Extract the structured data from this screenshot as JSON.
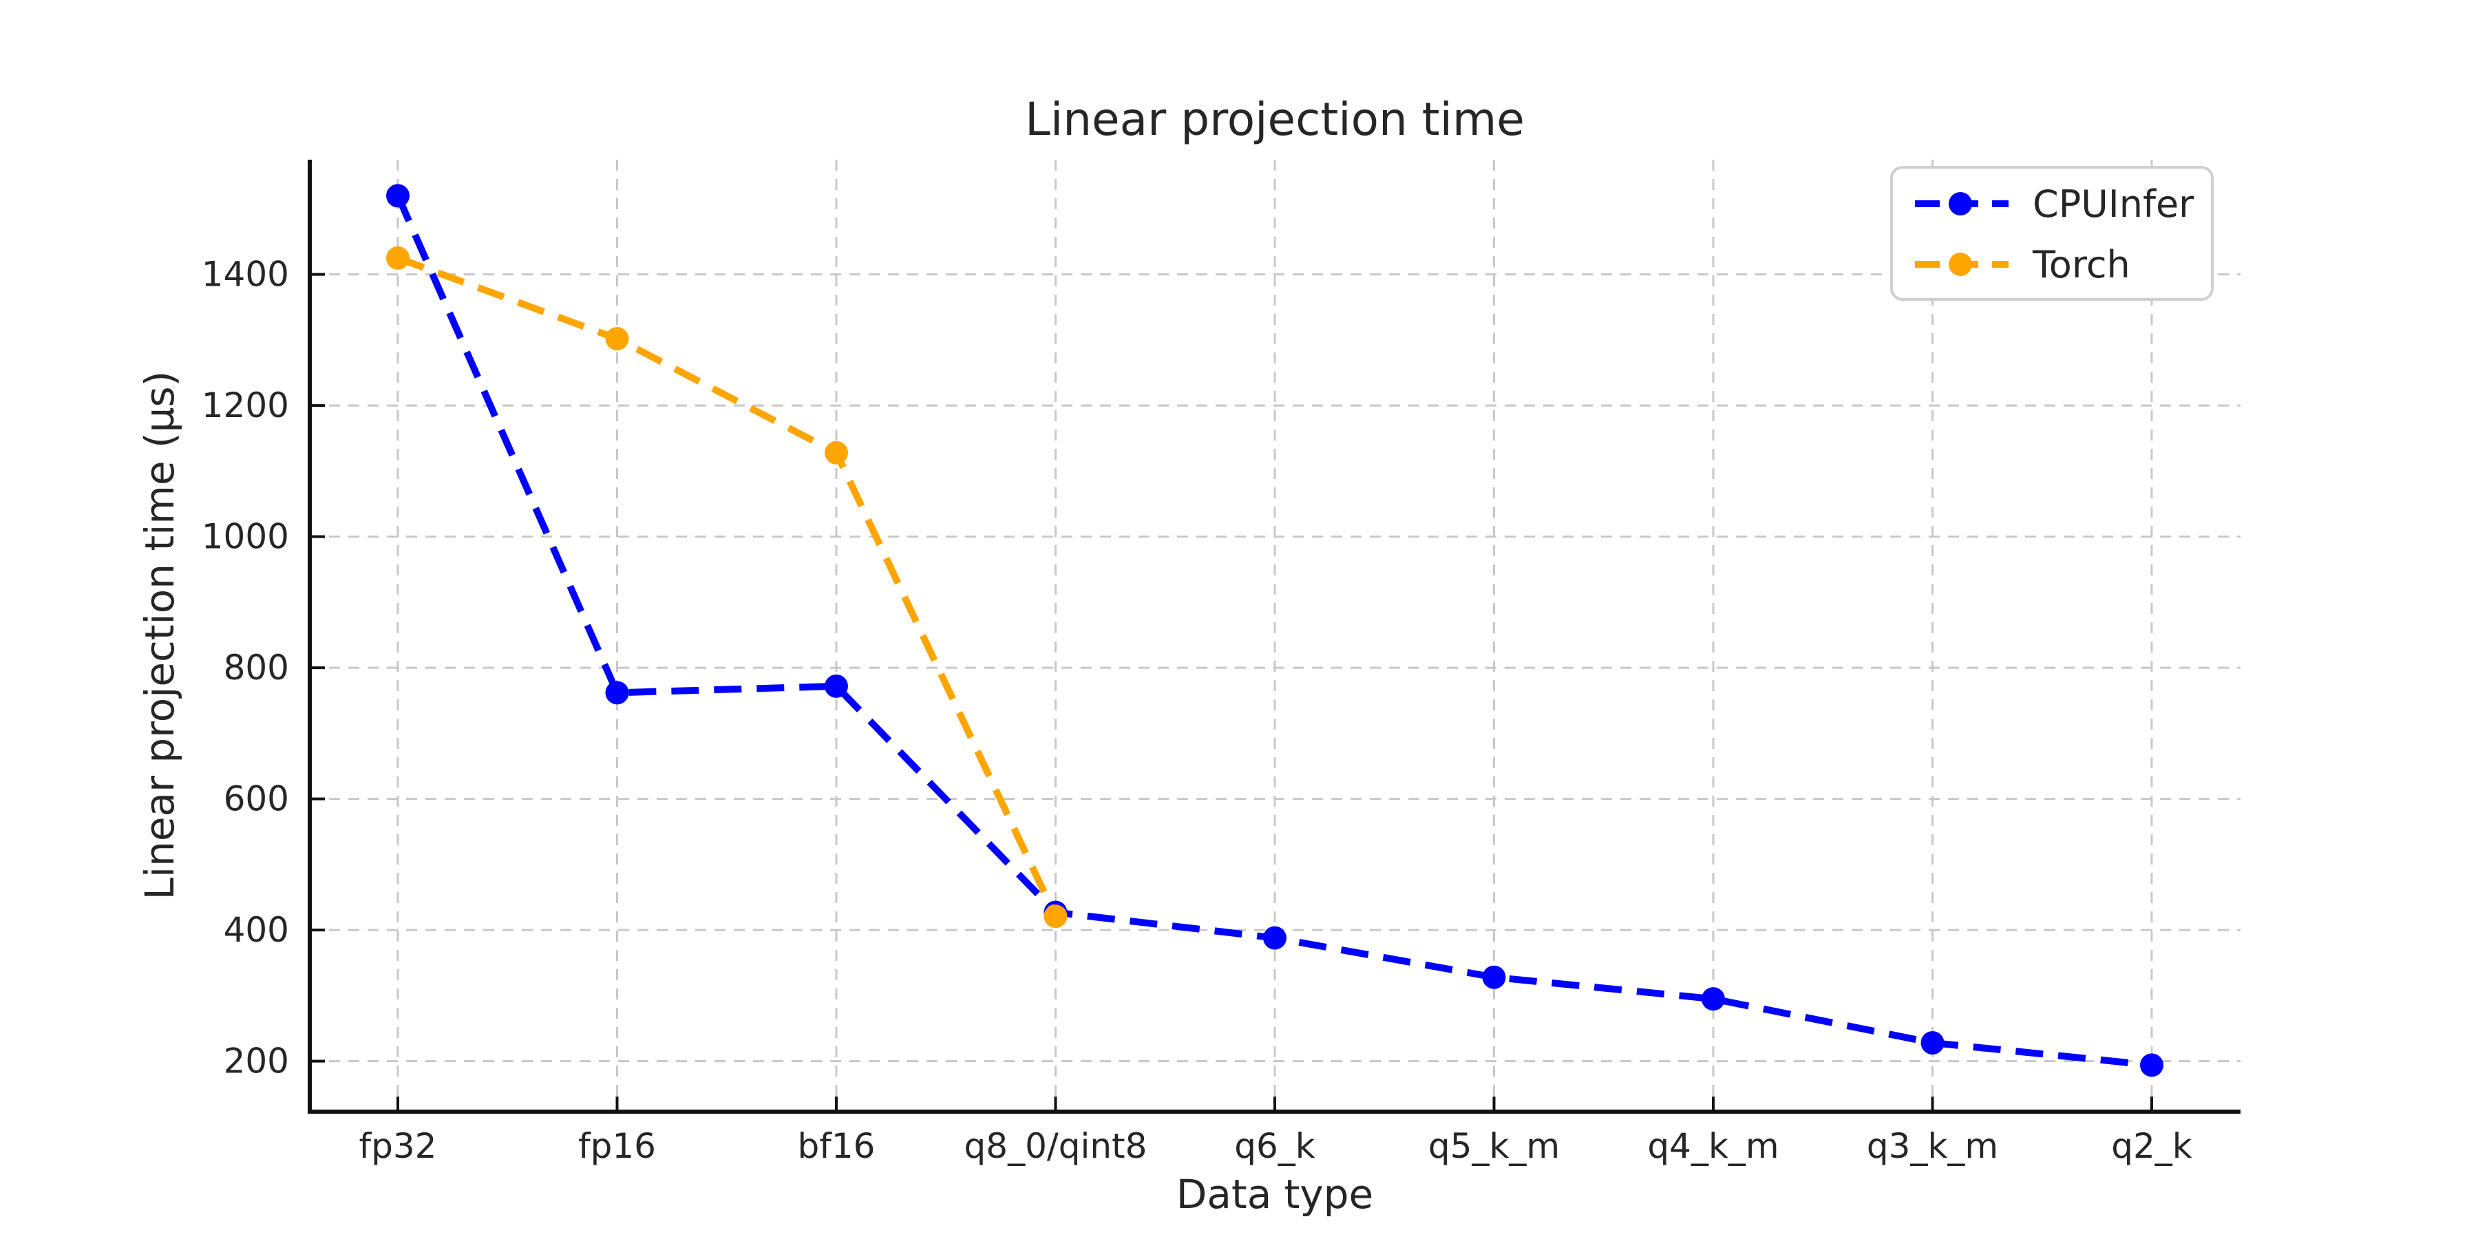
{
  "chart_data": {
    "type": "line",
    "title": "Linear projection time",
    "xlabel": "Data type",
    "ylabel": "Linear projection time (µs)",
    "categories": [
      "fp32",
      "fp16",
      "bf16",
      "q8_0/qint8",
      "q6_k",
      "q5_k_m",
      "q4_k_m",
      "q3_k_m",
      "q2_k"
    ],
    "series": [
      {
        "name": "CPUInfer",
        "color": "#0000ff",
        "values": [
          1520,
          762,
          772,
          427,
          388,
          328,
          295,
          228,
          194
        ]
      },
      {
        "name": "Torch",
        "color": "#ffa500",
        "values": [
          1425,
          1302,
          1128,
          421,
          null,
          null,
          null,
          null,
          null
        ]
      }
    ],
    "yticks": [
      200,
      400,
      600,
      800,
      1000,
      1200,
      1400
    ],
    "ylim": [
      123,
      1575
    ],
    "grid": true,
    "grid_style": "dashed",
    "line_style": "dashed",
    "marker": "circle",
    "legend_position": "upper right"
  }
}
